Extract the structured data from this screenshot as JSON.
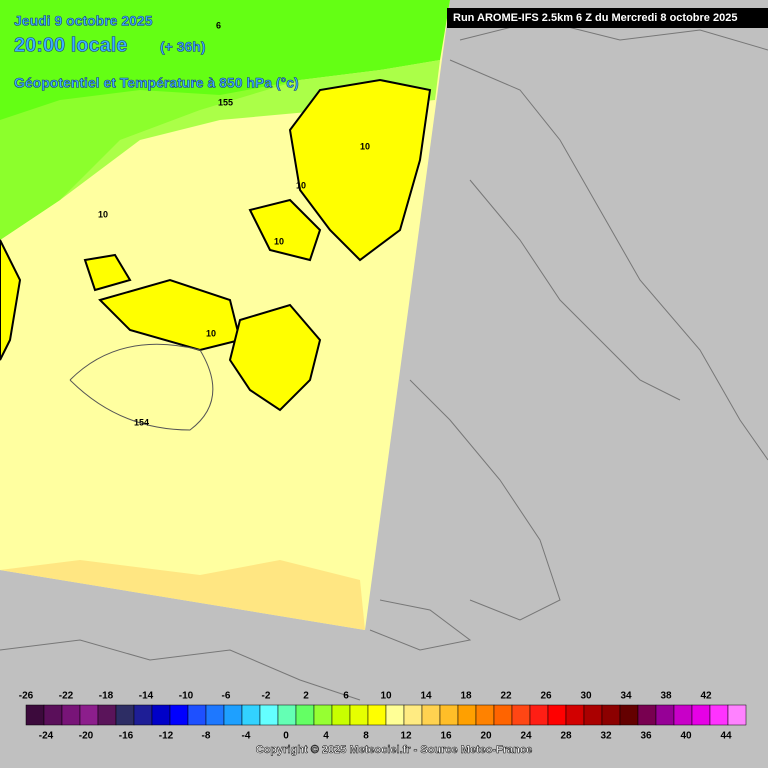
{
  "header": {
    "date": "Jeudi 9 octobre 2025",
    "time": "20:00 locale",
    "lead": "(+ 36h)",
    "parameter": "Géopotentiel et Température à 850 hPa (°c)",
    "run": "Run AROME-IFS 2.5km 6 Z du Mercredi 8 octobre 2025"
  },
  "contour_labels": [
    "6",
    "155",
    "10",
    "10",
    "10",
    "10",
    "10",
    "154"
  ],
  "colorbar": {
    "top_labels": [
      -26,
      -22,
      -18,
      -14,
      -10,
      -6,
      -2,
      2,
      6,
      10,
      14,
      18,
      22,
      26,
      30,
      34,
      38,
      42
    ],
    "bottom_labels": [
      -24,
      -20,
      -16,
      -12,
      -8,
      -4,
      0,
      4,
      8,
      12,
      16,
      20,
      24,
      28,
      32,
      36,
      40,
      44
    ],
    "colors": [
      "#3c0a3c",
      "#5a0f5a",
      "#781478",
      "#8c1e8c",
      "#5a145a",
      "#2d2d64",
      "#1e1e96",
      "#0000c8",
      "#0000ff",
      "#1e50ff",
      "#1e78ff",
      "#1ea0ff",
      "#32d2ff",
      "#64ffff",
      "#64ffb4",
      "#64ff64",
      "#96ff32",
      "#c8ff00",
      "#e6ff00",
      "#ffff00",
      "#ffff96",
      "#ffeb82",
      "#ffd250",
      "#ffbe28",
      "#ffa000",
      "#ff8200",
      "#ff6400",
      "#ff4614",
      "#ff1e14",
      "#ff0000",
      "#d20000",
      "#aa0000",
      "#8c0000",
      "#640000",
      "#780050",
      "#960096",
      "#c800c8",
      "#e600e6",
      "#ff32ff",
      "#ff82ff"
    ]
  },
  "footer": {
    "copyright": "Copyright © 2025 Meteociel.fr - Source Meteo-France"
  }
}
